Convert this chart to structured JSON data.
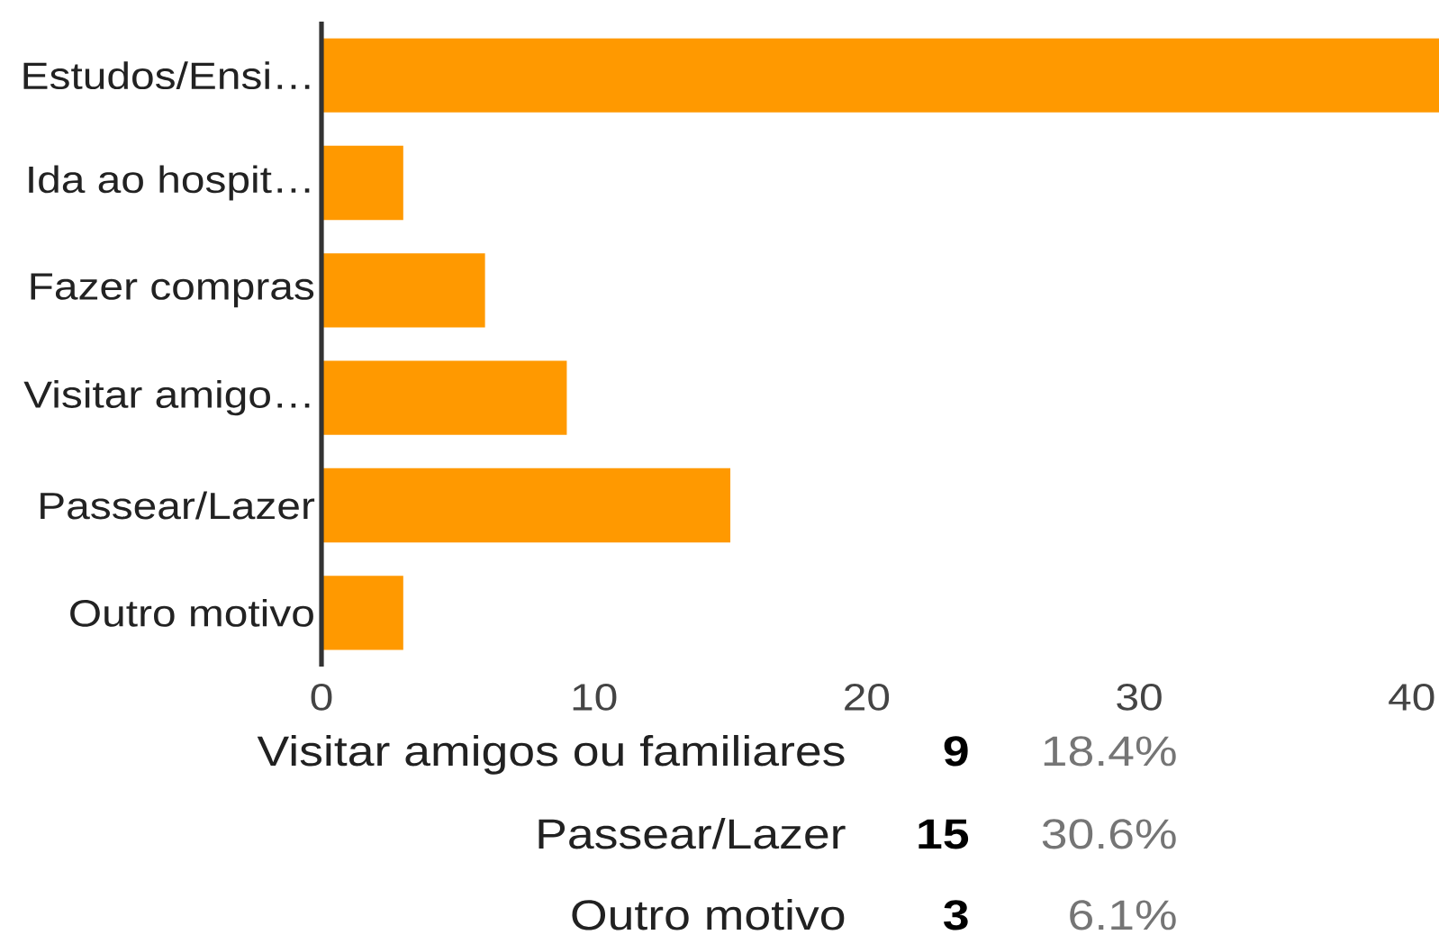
{
  "chart_data": {
    "type": "bar",
    "orientation": "horizontal",
    "categories": [
      "Estudos/Ensi…",
      "Ida ao hospit…",
      "Fazer compras",
      "Visitar amigo…",
      "Passear/Lazer",
      "Outro motivo"
    ],
    "values": [
      41,
      3,
      6,
      9,
      15,
      3
    ],
    "color": "#ff9900",
    "xlim": [
      0,
      41
    ],
    "xticks": [
      0,
      10,
      20,
      30,
      40
    ],
    "annotations": [
      "Visitar amigos ou familiares",
      "9",
      "18.4%",
      "Passear/Lazer",
      "15",
      "30.6%",
      "Outro motivo",
      "3",
      "6.1%"
    ]
  }
}
